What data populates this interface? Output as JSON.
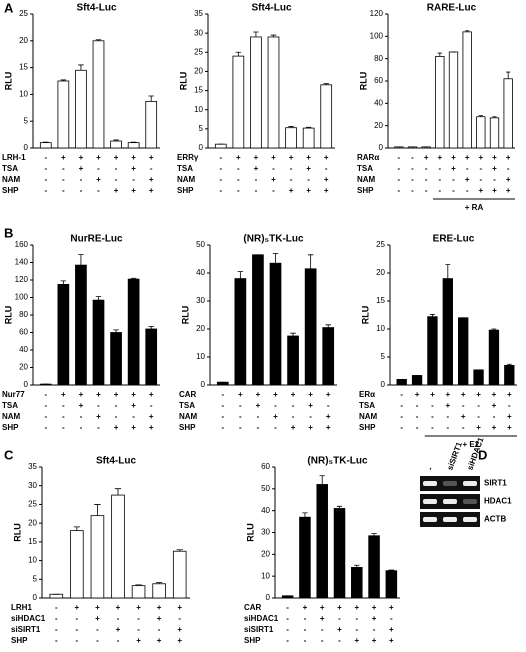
{
  "panels": [
    "A",
    "B",
    "C",
    "D"
  ],
  "chart_data": [
    {
      "type": "bar",
      "title": "Sft4-Luc",
      "ylabel": "RLU",
      "color": "#ffffff",
      "ylim": [
        0,
        25
      ],
      "yticks": [
        0,
        5,
        10,
        15,
        20,
        25
      ],
      "values": [
        1,
        12.5,
        14.5,
        20,
        1.3,
        1,
        8.7
      ],
      "errors": [
        0.1,
        0.2,
        1,
        0.2,
        0.2,
        0.1,
        1
      ],
      "conditions": [
        {
          "name": "LRH-1",
          "signs": [
            "-",
            "+",
            "+",
            "+",
            "+",
            "+",
            "+"
          ]
        },
        {
          "name": "TSA",
          "signs": [
            "-",
            "-",
            "+",
            "-",
            "-",
            "+",
            "-"
          ]
        },
        {
          "name": "NAM",
          "signs": [
            "-",
            "-",
            "-",
            "+",
            "-",
            "-",
            "+"
          ]
        },
        {
          "name": "SHP",
          "signs": [
            "-",
            "-",
            "-",
            "-",
            "+",
            "+",
            "+"
          ]
        }
      ]
    },
    {
      "type": "bar",
      "title": "Sft4-Luc",
      "ylabel": "RLU",
      "color": "#ffffff",
      "ylim": [
        0,
        35
      ],
      "yticks": [
        0,
        5,
        10,
        15,
        20,
        25,
        30,
        35
      ],
      "values": [
        1,
        24,
        29,
        29,
        5.3,
        5.2,
        16.5
      ],
      "errors": [
        0,
        1,
        1.3,
        0.5,
        0.3,
        0.2,
        0.3
      ],
      "conditions": [
        {
          "name": "ERRγ",
          "signs": [
            "-",
            "+",
            "+",
            "+",
            "+",
            "+",
            "+"
          ]
        },
        {
          "name": "TSA",
          "signs": [
            "-",
            "-",
            "+",
            "-",
            "-",
            "+",
            "-"
          ]
        },
        {
          "name": "NAM",
          "signs": [
            "-",
            "-",
            "-",
            "+",
            "-",
            "-",
            "+"
          ]
        },
        {
          "name": "SHP",
          "signs": [
            "-",
            "-",
            "-",
            "-",
            "+",
            "+",
            "+"
          ]
        }
      ]
    },
    {
      "type": "bar",
      "title": "RARE-Luc",
      "ylabel": "RLU",
      "color": "#ffffff",
      "ylim": [
        0,
        120
      ],
      "yticks": [
        0,
        20,
        40,
        60,
        80,
        100,
        120
      ],
      "values": [
        1,
        1,
        1,
        82,
        86,
        104,
        28,
        27,
        62
      ],
      "errors": [
        0,
        0,
        0,
        3,
        0,
        1,
        1,
        1,
        6
      ],
      "conditions": [
        {
          "name": "RARα",
          "signs": [
            "-",
            "-",
            "+",
            "+",
            "+",
            "+",
            "+",
            "+",
            "+"
          ]
        },
        {
          "name": "TSA",
          "signs": [
            "-",
            "-",
            "-",
            "-",
            "+",
            "-",
            "-",
            "+",
            "-"
          ]
        },
        {
          "name": "NAM",
          "signs": [
            "-",
            "-",
            "-",
            "-",
            "-",
            "+",
            "-",
            "-",
            "+"
          ]
        },
        {
          "name": "SHP",
          "signs": [
            "-",
            "-",
            "-",
            "-",
            "-",
            "-",
            "+",
            "+",
            "+"
          ]
        }
      ],
      "annotation": "+ RA"
    },
    {
      "type": "bar",
      "title": "NurRE-Luc",
      "ylabel": "RLU",
      "color": "#000000",
      "ylim": [
        0,
        160
      ],
      "yticks": [
        0,
        20,
        40,
        60,
        80,
        100,
        120,
        140,
        160
      ],
      "values": [
        1,
        115,
        137,
        97,
        60,
        121,
        64
      ],
      "errors": [
        0,
        4,
        12,
        4,
        3,
        1,
        3
      ],
      "conditions": [
        {
          "name": "Nur77",
          "signs": [
            "-",
            "+",
            "+",
            "+",
            "+",
            "+",
            "+"
          ]
        },
        {
          "name": "TSA",
          "signs": [
            "-",
            "-",
            "+",
            "-",
            "-",
            "+",
            "-"
          ]
        },
        {
          "name": "NAM",
          "signs": [
            "-",
            "-",
            "-",
            "+",
            "-",
            "-",
            "+"
          ]
        },
        {
          "name": "SHP",
          "signs": [
            "-",
            "-",
            "-",
            "-",
            "+",
            "+",
            "+"
          ]
        }
      ]
    },
    {
      "type": "bar",
      "title": "(NR)₅TK-Luc",
      "ylabel": "RLU",
      "color": "#000000",
      "ylim": [
        0,
        50
      ],
      "yticks": [
        0,
        10,
        20,
        30,
        40,
        50
      ],
      "values": [
        1,
        38,
        46.5,
        43.5,
        17.5,
        41.5,
        20.5
      ],
      "errors": [
        0,
        2.5,
        0,
        3.5,
        1,
        5,
        1
      ],
      "conditions": [
        {
          "name": "CAR",
          "signs": [
            "-",
            "+",
            "+",
            "+",
            "+",
            "+",
            "+"
          ]
        },
        {
          "name": "TSA",
          "signs": [
            "-",
            "-",
            "+",
            "-",
            "-",
            "+",
            "-"
          ]
        },
        {
          "name": "NAM",
          "signs": [
            "-",
            "-",
            "-",
            "+",
            "-",
            "-",
            "+"
          ]
        },
        {
          "name": "SHP",
          "signs": [
            "-",
            "-",
            "-",
            "-",
            "+",
            "+",
            "+"
          ]
        }
      ]
    },
    {
      "type": "bar",
      "title": "ERE-Luc",
      "ylabel": "RLU",
      "color": "#000000",
      "ylim": [
        0,
        25
      ],
      "yticks": [
        0,
        5,
        10,
        15,
        20,
        25
      ],
      "values": [
        1,
        1.7,
        12.2,
        19,
        12,
        2.7,
        9.8,
        3.5
      ],
      "errors": [
        0,
        0,
        0.4,
        2.5,
        0,
        0,
        0.2,
        0.2
      ],
      "conditions": [
        {
          "name": "ERα",
          "signs": [
            "-",
            "+",
            "+",
            "+",
            "+",
            "+",
            "+",
            "+"
          ]
        },
        {
          "name": "TSA",
          "signs": [
            "-",
            "-",
            "-",
            "+",
            "-",
            "-",
            "+",
            "-"
          ]
        },
        {
          "name": "NAM",
          "signs": [
            "-",
            "-",
            "-",
            "-",
            "+",
            "-",
            "-",
            "+"
          ]
        },
        {
          "name": "SHP",
          "signs": [
            "-",
            "-",
            "-",
            "-",
            "-",
            "+",
            "+",
            "+"
          ]
        }
      ],
      "annotation": "+ E2"
    },
    {
      "type": "bar",
      "title": "Sft4-Luc",
      "ylabel": "RLU",
      "color": "#ffffff",
      "ylim": [
        0,
        35
      ],
      "yticks": [
        0,
        5,
        10,
        15,
        20,
        25,
        30,
        35
      ],
      "values": [
        1,
        18,
        22,
        27.5,
        3.3,
        3.8,
        12.5
      ],
      "errors": [
        0,
        1,
        3,
        1.7,
        0.2,
        0.3,
        0.4
      ],
      "conditions": [
        {
          "name": "LRH1",
          "signs": [
            "-",
            "+",
            "+",
            "+",
            "+",
            "+",
            "+"
          ]
        },
        {
          "name": "siHDAC1",
          "signs": [
            "-",
            "-",
            "+",
            "-",
            "-",
            "+",
            "-"
          ]
        },
        {
          "name": "siSIRT1",
          "signs": [
            "-",
            "-",
            "-",
            "+",
            "-",
            "-",
            "+"
          ]
        },
        {
          "name": "SHP",
          "signs": [
            "-",
            "-",
            "-",
            "-",
            "+",
            "+",
            "+"
          ]
        }
      ]
    },
    {
      "type": "bar",
      "title": "(NR)₅TK-Luc",
      "ylabel": "RLU",
      "color": "#000000",
      "ylim": [
        0,
        60
      ],
      "yticks": [
        0,
        10,
        20,
        30,
        40,
        50,
        60
      ],
      "values": [
        1,
        37,
        52,
        41,
        14,
        28.5,
        12.5
      ],
      "errors": [
        0,
        2,
        4,
        1,
        1,
        1,
        0.3
      ],
      "conditions": [
        {
          "name": "CAR",
          "signs": [
            "-",
            "+",
            "+",
            "+",
            "+",
            "+",
            "+"
          ]
        },
        {
          "name": "siHDAC1",
          "signs": [
            "-",
            "-",
            "+",
            "-",
            "-",
            "+",
            "-"
          ]
        },
        {
          "name": "siSIRT1",
          "signs": [
            "-",
            "-",
            "-",
            "+",
            "-",
            "-",
            "+"
          ]
        },
        {
          "name": "SHP",
          "signs": [
            "-",
            "-",
            "-",
            "-",
            "+",
            "+",
            "+"
          ]
        }
      ]
    }
  ],
  "gel": {
    "lanes": [
      "-",
      "siSIRT1",
      "siHDAC1"
    ],
    "bands": [
      "SIRT1",
      "HDAC1",
      "ACTB"
    ]
  }
}
